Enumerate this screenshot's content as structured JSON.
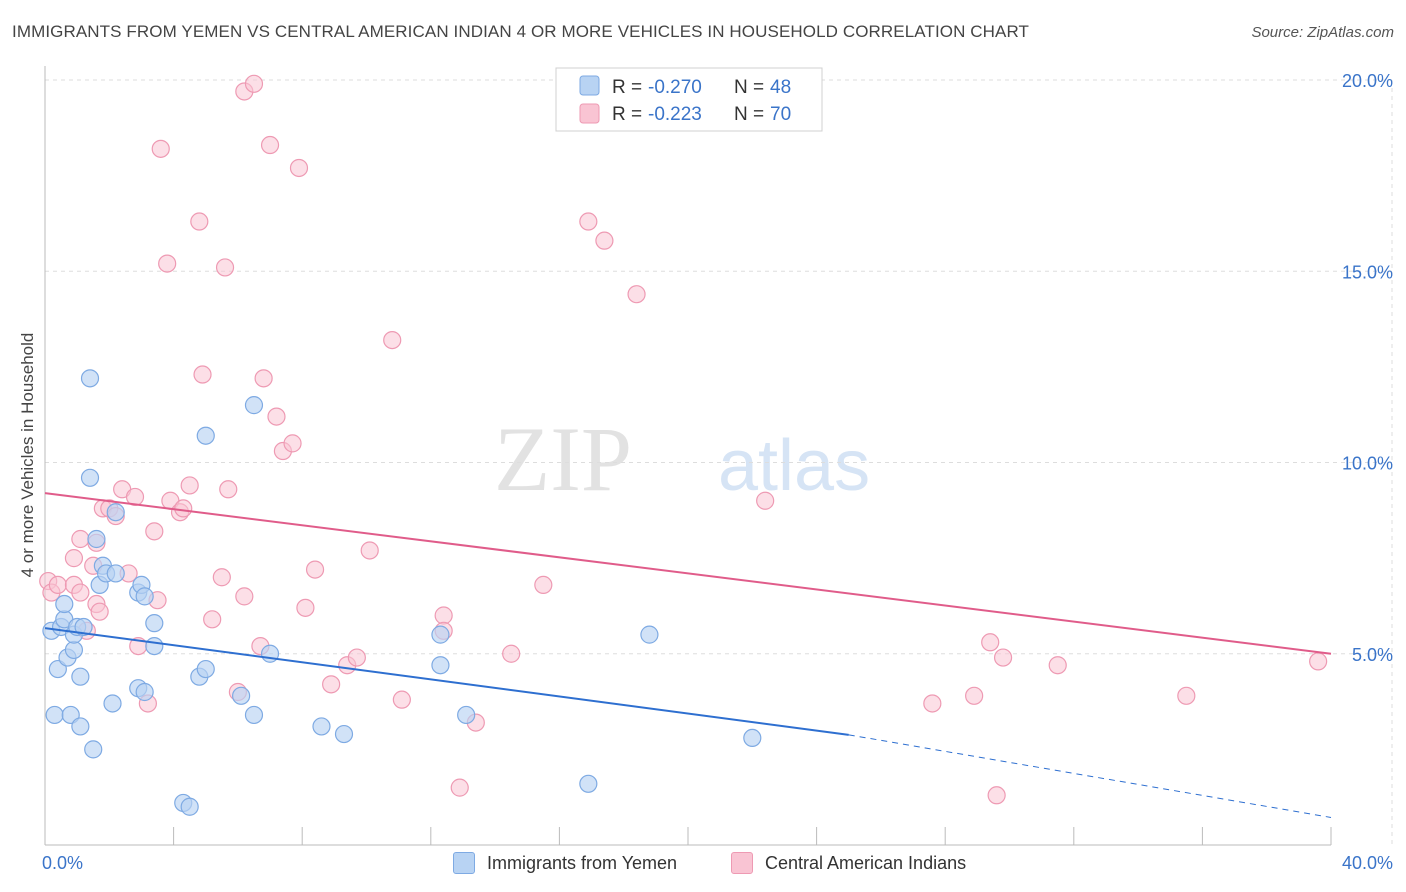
{
  "header": {
    "title": "IMMIGRANTS FROM YEMEN VS CENTRAL AMERICAN INDIAN 4 OR MORE VEHICLES IN HOUSEHOLD CORRELATION CHART",
    "source": "Source: ZipAtlas.com"
  },
  "watermark": {
    "zip": "ZIP",
    "atlas": "atlas"
  },
  "colors": {
    "blue_fill": "#b8d3f3",
    "blue_stroke": "#7eaae3",
    "blue_line": "#2e6fd0",
    "pink_fill": "#f9c4d3",
    "pink_stroke": "#ee9ab3",
    "pink_line": "#e05c8a",
    "tick_label": "#3a74c9",
    "grid": "#dddddd"
  },
  "legend": {
    "rows": [
      {
        "r_label": "R =",
        "r_value": "-0.270",
        "n_label": "N =",
        "n_value": "48"
      },
      {
        "r_label": "R =",
        "r_value": "-0.223",
        "n_label": "N =",
        "n_value": "70"
      }
    ]
  },
  "chart_data": {
    "type": "scatter",
    "title": "IMMIGRANTS FROM YEMEN VS CENTRAL AMERICAN INDIAN 4 OR MORE VEHICLES IN HOUSEHOLD CORRELATION CHART",
    "xlabel": "",
    "ylabel": "4 or more Vehicles in Household",
    "xlim": [
      0,
      40
    ],
    "ylim": [
      0,
      20
    ],
    "x_tick_labels": [
      "0.0%",
      "40.0%"
    ],
    "y_ticks": [
      5,
      10,
      15,
      20
    ],
    "y_tick_labels": [
      "5.0%",
      "10.0%",
      "15.0%",
      "20.0%"
    ],
    "grid": true,
    "legend_position": "top-center",
    "series": [
      {
        "name": "Immigrants from Yemen",
        "color": "#b8d3f3",
        "trend": {
          "x": [
            0,
            25.0
          ],
          "y": [
            5.67,
            2.88
          ],
          "dashed_to": [
            40,
            0.72
          ]
        },
        "points": [
          [
            0.2,
            5.6
          ],
          [
            0.3,
            3.4
          ],
          [
            0.4,
            4.6
          ],
          [
            0.5,
            5.7
          ],
          [
            0.6,
            5.9
          ],
          [
            0.6,
            6.3
          ],
          [
            0.7,
            4.9
          ],
          [
            0.8,
            3.4
          ],
          [
            0.9,
            5.1
          ],
          [
            0.9,
            5.5
          ],
          [
            1.0,
            5.7
          ],
          [
            1.1,
            4.4
          ],
          [
            1.2,
            5.7
          ],
          [
            1.1,
            3.1
          ],
          [
            1.4,
            12.2
          ],
          [
            1.4,
            9.6
          ],
          [
            1.5,
            2.5
          ],
          [
            1.6,
            8.0
          ],
          [
            1.7,
            6.8
          ],
          [
            1.8,
            7.3
          ],
          [
            1.9,
            7.1
          ],
          [
            2.1,
            3.7
          ],
          [
            2.2,
            7.1
          ],
          [
            2.2,
            8.7
          ],
          [
            2.9,
            6.6
          ],
          [
            2.9,
            4.1
          ],
          [
            3.1,
            4.0
          ],
          [
            3.0,
            6.8
          ],
          [
            3.1,
            6.5
          ],
          [
            3.4,
            5.8
          ],
          [
            3.4,
            5.2
          ],
          [
            4.3,
            1.1
          ],
          [
            4.5,
            1.0
          ],
          [
            4.8,
            4.4
          ],
          [
            5.0,
            10.7
          ],
          [
            5.0,
            4.6
          ],
          [
            6.1,
            3.9
          ],
          [
            6.5,
            11.5
          ],
          [
            6.5,
            3.4
          ],
          [
            7.0,
            5.0
          ],
          [
            8.6,
            3.1
          ],
          [
            9.3,
            2.9
          ],
          [
            12.3,
            5.5
          ],
          [
            12.3,
            4.7
          ],
          [
            13.1,
            3.4
          ],
          [
            16.9,
            1.6
          ],
          [
            18.8,
            5.5
          ],
          [
            22.0,
            2.8
          ]
        ]
      },
      {
        "name": "Central American Indians",
        "color": "#f9c4d3",
        "trend": {
          "x": [
            0,
            40
          ],
          "y": [
            9.2,
            5.0
          ]
        },
        "points": [
          [
            0.1,
            6.9
          ],
          [
            0.2,
            6.6
          ],
          [
            0.4,
            6.8
          ],
          [
            0.9,
            6.8
          ],
          [
            0.9,
            7.5
          ],
          [
            1.1,
            6.6
          ],
          [
            1.1,
            8.0
          ],
          [
            1.3,
            5.6
          ],
          [
            1.5,
            7.3
          ],
          [
            1.6,
            7.9
          ],
          [
            1.6,
            6.3
          ],
          [
            1.7,
            6.1
          ],
          [
            1.8,
            8.8
          ],
          [
            2.0,
            8.8
          ],
          [
            2.2,
            8.6
          ],
          [
            2.4,
            9.3
          ],
          [
            2.6,
            7.1
          ],
          [
            2.8,
            9.1
          ],
          [
            2.9,
            5.2
          ],
          [
            3.2,
            3.7
          ],
          [
            3.4,
            8.2
          ],
          [
            3.5,
            6.4
          ],
          [
            3.6,
            18.2
          ],
          [
            3.8,
            15.2
          ],
          [
            3.9,
            9.0
          ],
          [
            4.2,
            8.7
          ],
          [
            4.3,
            8.8
          ],
          [
            4.5,
            9.4
          ],
          [
            4.8,
            16.3
          ],
          [
            4.9,
            12.3
          ],
          [
            5.2,
            5.9
          ],
          [
            5.5,
            7.0
          ],
          [
            5.6,
            15.1
          ],
          [
            5.7,
            9.3
          ],
          [
            6.0,
            4.0
          ],
          [
            6.2,
            6.5
          ],
          [
            6.2,
            19.7
          ],
          [
            6.5,
            19.9
          ],
          [
            6.7,
            5.2
          ],
          [
            6.8,
            12.2
          ],
          [
            7.0,
            18.3
          ],
          [
            7.2,
            11.2
          ],
          [
            7.4,
            10.3
          ],
          [
            7.7,
            10.5
          ],
          [
            7.9,
            17.7
          ],
          [
            8.1,
            6.2
          ],
          [
            8.4,
            7.2
          ],
          [
            8.9,
            4.2
          ],
          [
            9.4,
            4.7
          ],
          [
            9.7,
            4.9
          ],
          [
            10.1,
            7.7
          ],
          [
            10.8,
            13.2
          ],
          [
            11.1,
            3.8
          ],
          [
            12.4,
            6.0
          ],
          [
            12.4,
            5.6
          ],
          [
            12.9,
            1.5
          ],
          [
            13.4,
            3.2
          ],
          [
            14.5,
            5.0
          ],
          [
            15.5,
            6.8
          ],
          [
            16.9,
            16.3
          ],
          [
            17.4,
            15.8
          ],
          [
            18.4,
            14.4
          ],
          [
            22.4,
            9.0
          ],
          [
            27.6,
            3.7
          ],
          [
            28.9,
            3.9
          ],
          [
            29.4,
            5.3
          ],
          [
            29.8,
            4.9
          ],
          [
            29.6,
            1.3
          ],
          [
            31.5,
            4.7
          ],
          [
            35.5,
            3.9
          ],
          [
            39.6,
            4.8
          ]
        ]
      }
    ]
  },
  "bottom_legend": {
    "items": [
      {
        "label": "Immigrants from Yemen"
      },
      {
        "label": "Central American Indians"
      }
    ]
  }
}
